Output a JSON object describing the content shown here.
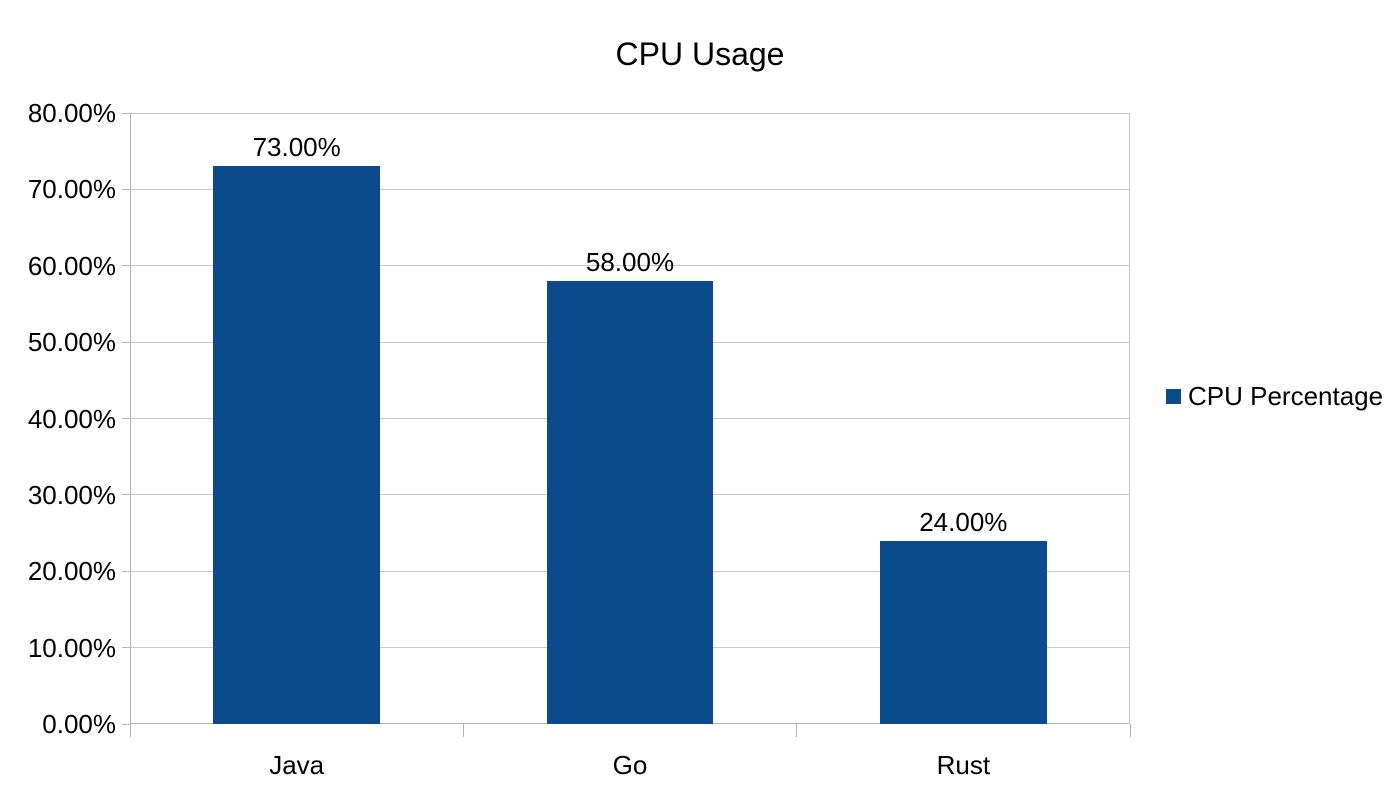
{
  "chart_data": {
    "type": "bar",
    "title": "CPU Usage",
    "categories": [
      "Java",
      "Go",
      "Rust"
    ],
    "series": [
      {
        "name": "CPU Percentage",
        "values": [
          73,
          58,
          24
        ]
      }
    ],
    "value_labels": [
      "73.00%",
      "58.00%",
      "24.00%"
    ],
    "ylim": [
      0,
      80
    ],
    "y_ticks": [
      0,
      10,
      20,
      30,
      40,
      50,
      60,
      70,
      80
    ],
    "y_tick_labels": [
      "0.00%",
      "10.00%",
      "20.00%",
      "30.00%",
      "40.00%",
      "50.00%",
      "60.00%",
      "70.00%",
      "80.00%"
    ],
    "xlabel": "",
    "ylabel": "",
    "grid": "horizontal",
    "legend_position": "right",
    "bar_color": "#0b4a8b",
    "gridline_color": "#c9c9c9",
    "axis_color": "#b3b3b3"
  }
}
